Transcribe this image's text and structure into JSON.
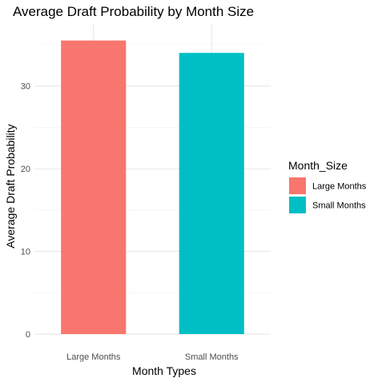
{
  "chart_data": {
    "type": "bar",
    "title": "Average Draft Probability by Month Size",
    "xlabel": "Month Types",
    "ylabel": "Average Draft Probability",
    "categories": [
      "Large Months",
      "Small Months"
    ],
    "values": [
      35.5,
      34.0
    ],
    "ylim": [
      0,
      37.5
    ],
    "yticks": [
      0,
      10,
      20,
      30
    ],
    "grid": true,
    "legend": {
      "title": "Month_Size",
      "placement": "right",
      "entries": [
        "Large Months",
        "Small Months"
      ]
    },
    "colors": [
      "#F8766D",
      "#00BFC4"
    ]
  }
}
